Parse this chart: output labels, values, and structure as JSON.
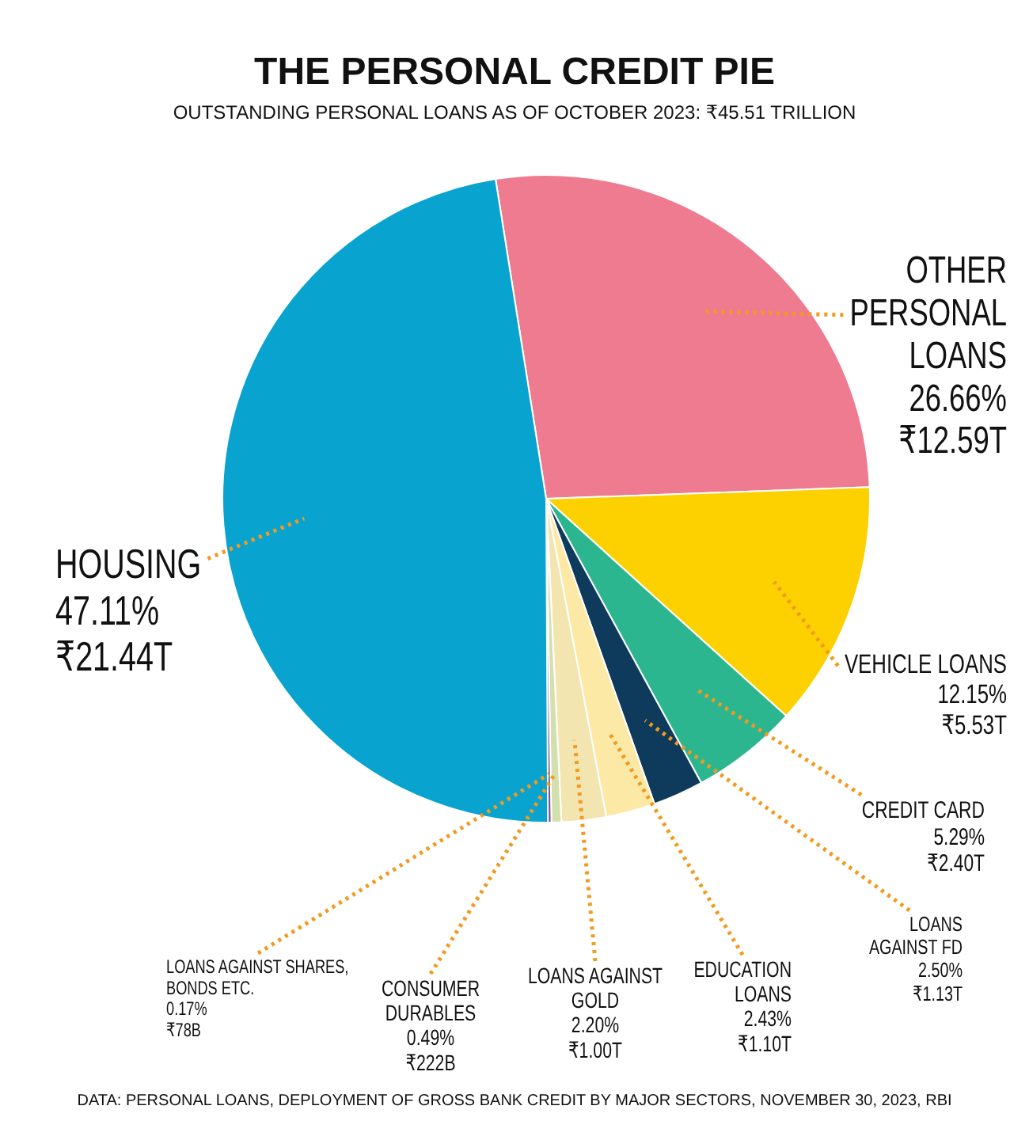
{
  "chart_data": {
    "type": "pie",
    "title": "THE PERSONAL CREDIT PIE",
    "subtitle": "OUTSTANDING PERSONAL LOANS AS OF OCTOBER 2023: ₹45.51 TRILLION",
    "categories": [
      "OTHER PERSONAL LOANS",
      "VEHICLE LOANS",
      "CREDIT CARD",
      "LOANS AGAINST FD",
      "EDUCATION LOANS",
      "LOANS AGAINST GOLD",
      "CONSUMER DURABLES",
      "LOANS AGAINST SHARES, BONDS ETC.",
      "HOUSING"
    ],
    "values": [
      26.66,
      12.15,
      5.29,
      2.5,
      2.43,
      2.2,
      0.49,
      0.17,
      47.11
    ],
    "value_labels": [
      "26.66%\n₹12.59T",
      "12.15%\n₹5.53T",
      "5.29%\n₹2.40T",
      "2.50%\n₹1.13T",
      "2.43%\n₹1.10T",
      "2.20%\n₹1.00T",
      "0.49%\n₹222B",
      "0.17%\n₹78B",
      "47.11%\n₹21.44T"
    ],
    "colors": [
      "#ee7b8f",
      "#fdd000",
      "#2cb68f",
      "#0e3a5c",
      "#fde9a6",
      "#f3e5b0",
      "#d3e0ae",
      "#7d4f8f",
      "#08a3cf"
    ],
    "annotations": [
      "DATA: PERSONAL LOANS, DEPLOYMENT OF GROSS BANK CREDIT BY MAJOR SECTORS, NOVEMBER 30, 2023, RBI"
    ],
    "legend": false
  }
}
